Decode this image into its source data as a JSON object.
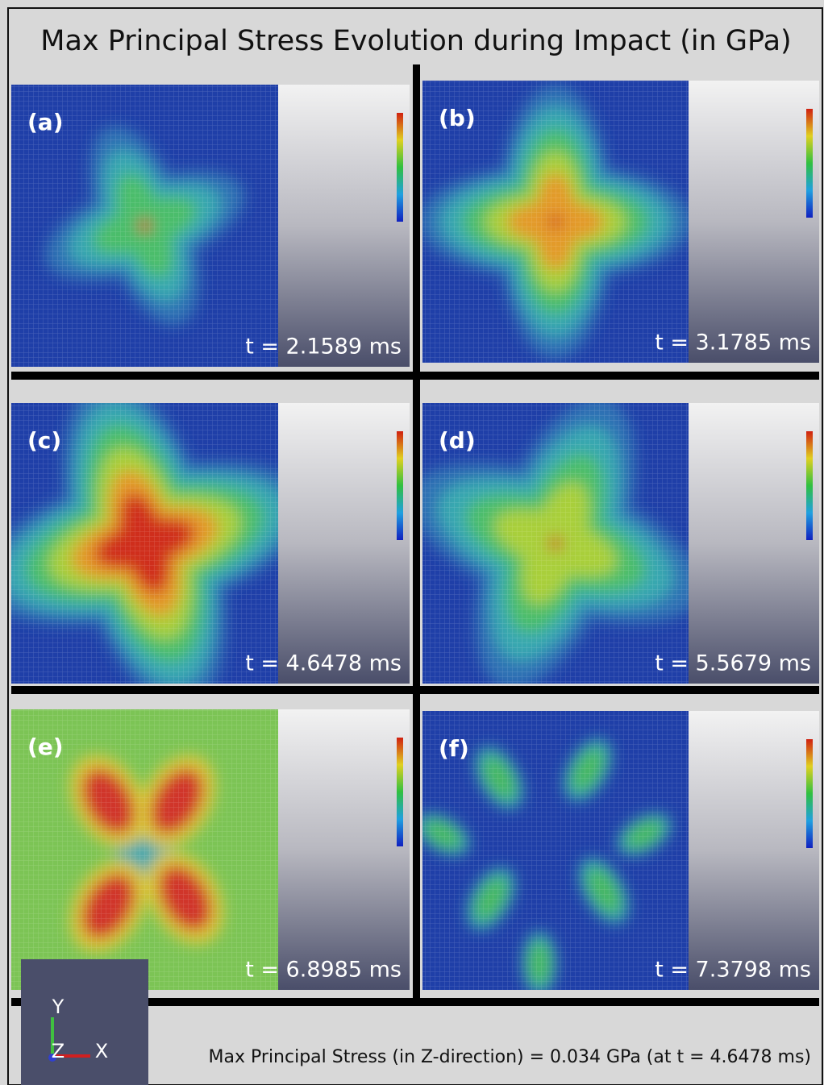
{
  "title": "Max Principal Stress Evolution during Impact (in GPa)",
  "panels": [
    {
      "label": "(a)",
      "time": "t = 2.1589 ms"
    },
    {
      "label": "(b)",
      "time": "t = 3.1785 ms"
    },
    {
      "label": "(c)",
      "time": "t = 4.6478 ms"
    },
    {
      "label": "(d)",
      "time": "t = 5.5679 ms"
    },
    {
      "label": "(e)",
      "time": "t = 6.8985 ms"
    },
    {
      "label": "(f)",
      "time": "t = 7.3798 ms"
    }
  ],
  "axes": {
    "y": "Y",
    "z": "Z",
    "x": "X"
  },
  "footer": "Max Principal Stress (in Z-direction) = 0.034 GPa (at t = 4.6478 ms)"
}
